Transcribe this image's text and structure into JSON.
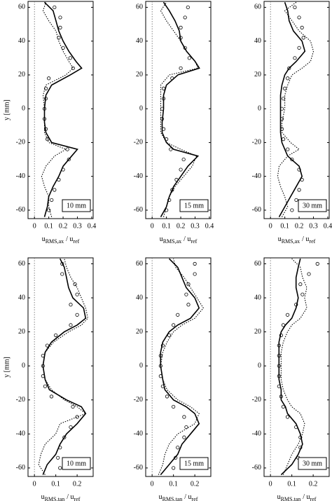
{
  "chart_data": [
    {
      "type": "line",
      "label": "10 mm",
      "ylabel": "y [mm]",
      "xlabel": [
        "u",
        "RMS,ax",
        "/ u",
        "ref"
      ],
      "xlim": [
        -0.045,
        0.41
      ],
      "ylim": [
        -65,
        63.5
      ],
      "xticks": [
        0,
        0.1,
        0.2,
        0.3,
        0.4
      ],
      "yticks": [
        -60,
        -40,
        -20,
        0,
        20,
        40,
        60
      ],
      "zero_line": true,
      "series": [
        {
          "style": "solid",
          "color": "#000000",
          "y": [
            -64,
            -58,
            -52,
            -46,
            -40,
            -34,
            -28,
            -24,
            -20,
            -14,
            -8,
            0,
            8,
            14,
            20,
            24,
            28,
            34,
            40,
            46,
            52,
            58,
            63
          ],
          "x": [
            0.07,
            0.09,
            0.1,
            0.13,
            0.17,
            0.2,
            0.26,
            0.3,
            0.12,
            0.08,
            0.07,
            0.07,
            0.08,
            0.12,
            0.25,
            0.33,
            0.29,
            0.24,
            0.2,
            0.17,
            0.15,
            0.13,
            0.07
          ]
        },
        {
          "style": "dotted",
          "color": "#000000",
          "y": [
            -64,
            -58,
            -52,
            -46,
            -40,
            -34,
            -28,
            -24,
            -20,
            -14,
            -8,
            0,
            8,
            14,
            20,
            24,
            28,
            34,
            40,
            46,
            52,
            58,
            63
          ],
          "x": [
            0.12,
            0.1,
            0.1,
            0.07,
            0.05,
            0.08,
            0.14,
            0.22,
            0.1,
            0.07,
            0.07,
            0.07,
            0.06,
            0.08,
            0.22,
            0.27,
            0.24,
            0.2,
            0.17,
            0.15,
            0.1,
            0.06,
            0.08
          ]
        },
        {
          "style": "markers",
          "color": "#000000",
          "y": [
            -60,
            -54,
            -48,
            -42,
            -36,
            -30,
            -24,
            -18,
            -12,
            -6,
            0,
            6,
            12,
            18,
            24,
            30,
            36,
            42,
            48,
            54,
            60
          ],
          "x": [
            0.1,
            0.12,
            0.14,
            0.17,
            0.2,
            0.24,
            0.23,
            0.09,
            0.08,
            0.07,
            0.07,
            0.08,
            0.08,
            0.1,
            0.27,
            0.25,
            0.2,
            0.17,
            0.18,
            0.18,
            0.14
          ]
        }
      ]
    },
    {
      "type": "line",
      "label": "15 mm",
      "xlabel": [
        "u",
        "RMS,ax",
        "/ u",
        "ref"
      ],
      "xlim": [
        -0.045,
        0.41
      ],
      "ylim": [
        -65,
        63.5
      ],
      "xticks": [
        0,
        0.1,
        0.2,
        0.3,
        0.4
      ],
      "yticks": [
        -60,
        -40,
        -20,
        0,
        20,
        40,
        60
      ],
      "zero_line": true,
      "series": [
        {
          "style": "solid",
          "color": "#000000",
          "y": [
            -64,
            -58,
            -52,
            -46,
            -40,
            -34,
            -28,
            -24,
            -20,
            -14,
            -8,
            0,
            8,
            14,
            20,
            24,
            28,
            34,
            40,
            46,
            52,
            58,
            63
          ],
          "x": [
            0.06,
            0.1,
            0.12,
            0.15,
            0.2,
            0.25,
            0.32,
            0.15,
            0.1,
            0.07,
            0.07,
            0.08,
            0.08,
            0.1,
            0.18,
            0.33,
            0.3,
            0.24,
            0.2,
            0.19,
            0.16,
            0.12,
            0.08
          ]
        },
        {
          "style": "dotted",
          "color": "#000000",
          "y": [
            -64,
            -58,
            -52,
            -46,
            -40,
            -34,
            -28,
            -24,
            -20,
            -14,
            -8,
            0,
            8,
            14,
            20,
            24,
            28,
            34,
            40,
            46,
            52,
            58,
            63
          ],
          "x": [
            0.08,
            0.1,
            0.12,
            0.16,
            0.22,
            0.28,
            0.31,
            0.2,
            0.1,
            0.06,
            0.06,
            0.06,
            0.06,
            0.06,
            0.12,
            0.32,
            0.3,
            0.24,
            0.2,
            0.15,
            0.1,
            0.06,
            0.1
          ]
        },
        {
          "style": "markers",
          "color": "#000000",
          "y": [
            -60,
            -54,
            -48,
            -42,
            -36,
            -30,
            -24,
            -18,
            -12,
            -6,
            0,
            6,
            12,
            18,
            24,
            30,
            36,
            42,
            48,
            54,
            60
          ],
          "x": [
            0.1,
            0.12,
            0.14,
            0.17,
            0.2,
            0.22,
            0.13,
            0.1,
            0.08,
            0.07,
            0.07,
            0.08,
            0.08,
            0.14,
            0.2,
            0.26,
            0.23,
            0.2,
            0.2,
            0.23,
            0.25
          ]
        }
      ]
    },
    {
      "type": "line",
      "label": "30 mm",
      "xlabel": [
        "u",
        "RMS,ax",
        "/ u",
        "ref"
      ],
      "xlim": [
        -0.045,
        0.41
      ],
      "ylim": [
        -65,
        63.5
      ],
      "xticks": [
        0,
        0.1,
        0.2,
        0.3,
        0.4
      ],
      "yticks": [
        -60,
        -40,
        -20,
        0,
        20,
        40,
        60
      ],
      "zero_line": true,
      "series": [
        {
          "style": "solid",
          "color": "#000000",
          "y": [
            -64,
            -58,
            -52,
            -46,
            -40,
            -34,
            -28,
            -24,
            -20,
            -14,
            -8,
            0,
            8,
            14,
            20,
            24,
            28,
            34,
            40,
            46,
            52,
            58,
            63
          ],
          "x": [
            0.06,
            0.1,
            0.14,
            0.18,
            0.22,
            0.2,
            0.12,
            0.1,
            0.08,
            0.07,
            0.07,
            0.07,
            0.07,
            0.08,
            0.1,
            0.13,
            0.18,
            0.24,
            0.22,
            0.16,
            0.13,
            0.12,
            0.1
          ]
        },
        {
          "style": "dotted",
          "color": "#000000",
          "y": [
            -64,
            -58,
            -52,
            -46,
            -40,
            -34,
            -28,
            -24,
            -20,
            -14,
            -8,
            0,
            8,
            14,
            20,
            24,
            28,
            34,
            40,
            46,
            52,
            58,
            63
          ],
          "x": [
            0.08,
            0.12,
            0.1,
            0.07,
            0.05,
            0.06,
            0.12,
            0.2,
            0.14,
            0.08,
            0.08,
            0.1,
            0.1,
            0.12,
            0.15,
            0.22,
            0.28,
            0.3,
            0.28,
            0.2,
            0.15,
            0.1,
            0.18
          ]
        },
        {
          "style": "markers",
          "color": "#000000",
          "y": [
            -60,
            -54,
            -48,
            -42,
            -36,
            -30,
            -24,
            -18,
            -12,
            -6,
            0,
            6,
            12,
            18,
            24,
            30,
            36,
            42,
            48,
            54,
            60
          ],
          "x": [
            0.15,
            0.18,
            0.2,
            0.22,
            0.2,
            0.15,
            0.12,
            0.09,
            0.08,
            0.08,
            0.08,
            0.09,
            0.1,
            0.12,
            0.13,
            0.17,
            0.2,
            0.23,
            0.22,
            0.2,
            0.17
          ]
        }
      ]
    },
    {
      "type": "line",
      "label": "10 mm",
      "ylabel": "y [mm]",
      "xlabel": [
        "u",
        "RMS,tan",
        "/ u",
        "ref"
      ],
      "xlim": [
        -0.03,
        0.275
      ],
      "ylim": [
        -65,
        63.5
      ],
      "xticks": [
        0,
        0.1,
        0.2
      ],
      "yticks": [
        -60,
        -40,
        -20,
        0,
        20,
        40,
        60
      ],
      "zero_line": true,
      "series": [
        {
          "style": "solid",
          "color": "#000000",
          "y": [
            -64,
            -58,
            -52,
            -46,
            -40,
            -34,
            -28,
            -24,
            -20,
            -14,
            -8,
            0,
            8,
            14,
            20,
            24,
            28,
            34,
            40,
            46,
            52,
            58,
            63
          ],
          "x": [
            0.04,
            0.06,
            0.1,
            0.12,
            0.15,
            0.2,
            0.24,
            0.22,
            0.15,
            0.07,
            0.05,
            0.04,
            0.05,
            0.08,
            0.14,
            0.2,
            0.24,
            0.23,
            0.18,
            0.16,
            0.15,
            0.14,
            0.12
          ]
        },
        {
          "style": "dotted",
          "color": "#000000",
          "y": [
            -64,
            -58,
            -52,
            -46,
            -40,
            -34,
            -28,
            -24,
            -20,
            -14,
            -8,
            0,
            8,
            14,
            20,
            24,
            28,
            34,
            40,
            46,
            52,
            58,
            63
          ],
          "x": [
            0.05,
            0.02,
            0.03,
            0.05,
            0.1,
            0.12,
            0.24,
            0.2,
            0.14,
            0.08,
            0.05,
            0.04,
            0.05,
            0.09,
            0.16,
            0.22,
            0.25,
            0.24,
            0.22,
            0.2,
            0.17,
            0.15,
            0.14
          ]
        },
        {
          "style": "markers",
          "color": "#000000",
          "y": [
            -60,
            -54,
            -48,
            -42,
            -36,
            -30,
            -24,
            -18,
            -12,
            -6,
            0,
            6,
            12,
            18,
            24,
            30,
            36,
            42,
            48,
            54,
            60
          ],
          "x": [
            0.12,
            0.11,
            0.12,
            0.14,
            0.17,
            0.2,
            0.18,
            0.08,
            0.05,
            0.04,
            0.04,
            0.04,
            0.06,
            0.1,
            0.17,
            0.2,
            0.17,
            0.2,
            0.19,
            0.13,
            0.13
          ]
        }
      ]
    },
    {
      "type": "line",
      "label": "15 mm",
      "xlabel": [
        "u",
        "RMS,tan",
        "/ u",
        "ref"
      ],
      "xlim": [
        -0.03,
        0.275
      ],
      "ylim": [
        -65,
        63.5
      ],
      "xticks": [
        0,
        0.1,
        0.2
      ],
      "yticks": [
        -60,
        -40,
        -20,
        0,
        20,
        40,
        60
      ],
      "zero_line": true,
      "series": [
        {
          "style": "solid",
          "color": "#000000",
          "y": [
            -64,
            -58,
            -52,
            -46,
            -40,
            -34,
            -28,
            -24,
            -20,
            -14,
            -8,
            0,
            8,
            14,
            20,
            24,
            28,
            34,
            40,
            46,
            52,
            58,
            63
          ],
          "x": [
            0.04,
            0.08,
            0.12,
            0.14,
            0.18,
            0.22,
            0.2,
            0.16,
            0.1,
            0.06,
            0.05,
            0.04,
            0.04,
            0.05,
            0.08,
            0.12,
            0.18,
            0.22,
            0.2,
            0.16,
            0.14,
            0.12,
            0.08
          ]
        },
        {
          "style": "dotted",
          "color": "#000000",
          "y": [
            -64,
            -58,
            -52,
            -46,
            -40,
            -34,
            -28,
            -24,
            -20,
            -14,
            -8,
            0,
            8,
            14,
            20,
            24,
            28,
            34,
            40,
            46,
            52,
            58,
            63
          ],
          "x": [
            0.03,
            0.05,
            0.06,
            0.08,
            0.12,
            0.2,
            0.22,
            0.18,
            0.12,
            0.07,
            0.05,
            0.04,
            0.05,
            0.07,
            0.1,
            0.14,
            0.2,
            0.24,
            0.21,
            0.18,
            0.15,
            0.11,
            0.1
          ]
        },
        {
          "style": "markers",
          "color": "#000000",
          "y": [
            -60,
            -54,
            -48,
            -42,
            -36,
            -30,
            -24,
            -18,
            -12,
            -6,
            0,
            6,
            12,
            18,
            24,
            30,
            36,
            42,
            48,
            54,
            60
          ],
          "x": [
            0.1,
            0.11,
            0.12,
            0.15,
            0.16,
            0.15,
            0.1,
            0.07,
            0.05,
            0.04,
            0.04,
            0.04,
            0.05,
            0.08,
            0.1,
            0.12,
            0.17,
            0.16,
            0.17,
            0.2,
            0.2
          ]
        }
      ]
    },
    {
      "type": "line",
      "label": "30 mm",
      "xlabel": [
        "u",
        "RMS,tan",
        "/ u",
        "ref"
      ],
      "xlim": [
        -0.03,
        0.275
      ],
      "ylim": [
        -65,
        63.5
      ],
      "xticks": [
        0,
        0.1,
        0.2
      ],
      "yticks": [
        -60,
        -40,
        -20,
        0,
        20,
        40,
        60
      ],
      "zero_line": true,
      "series": [
        {
          "style": "solid",
          "color": "#000000",
          "y": [
            -64,
            -58,
            -52,
            -46,
            -40,
            -34,
            -28,
            -24,
            -20,
            -14,
            -8,
            0,
            8,
            14,
            20,
            24,
            28,
            34,
            40,
            46,
            52,
            58,
            63
          ],
          "x": [
            0.05,
            0.1,
            0.13,
            0.15,
            0.14,
            0.12,
            0.08,
            0.07,
            0.05,
            0.05,
            0.04,
            0.04,
            0.04,
            0.04,
            0.05,
            0.07,
            0.1,
            0.12,
            0.13,
            0.12,
            0.12,
            0.13,
            0.14
          ]
        },
        {
          "style": "dotted",
          "color": "#000000",
          "y": [
            -64,
            -58,
            -52,
            -46,
            -40,
            -34,
            -28,
            -24,
            -20,
            -14,
            -8,
            0,
            8,
            14,
            20,
            24,
            28,
            34,
            40,
            46,
            52,
            58,
            63
          ],
          "x": [
            0.06,
            0.08,
            0.1,
            0.13,
            0.15,
            0.16,
            0.14,
            0.1,
            0.08,
            0.06,
            0.05,
            0.05,
            0.05,
            0.06,
            0.08,
            0.1,
            0.14,
            0.17,
            0.16,
            0.17,
            0.15,
            0.14,
            0.1
          ]
        },
        {
          "style": "markers",
          "color": "#000000",
          "y": [
            -60,
            -54,
            -48,
            -42,
            -36,
            -30,
            -24,
            -18,
            -12,
            -6,
            0,
            6,
            12,
            18,
            24,
            30,
            36,
            42,
            48,
            54,
            60
          ],
          "x": [
            0.14,
            0.13,
            0.14,
            0.14,
            0.12,
            0.08,
            0.06,
            0.05,
            0.04,
            0.04,
            0.04,
            0.04,
            0.04,
            0.05,
            0.06,
            0.08,
            0.12,
            0.15,
            0.14,
            0.18,
            0.22
          ]
        }
      ]
    }
  ]
}
